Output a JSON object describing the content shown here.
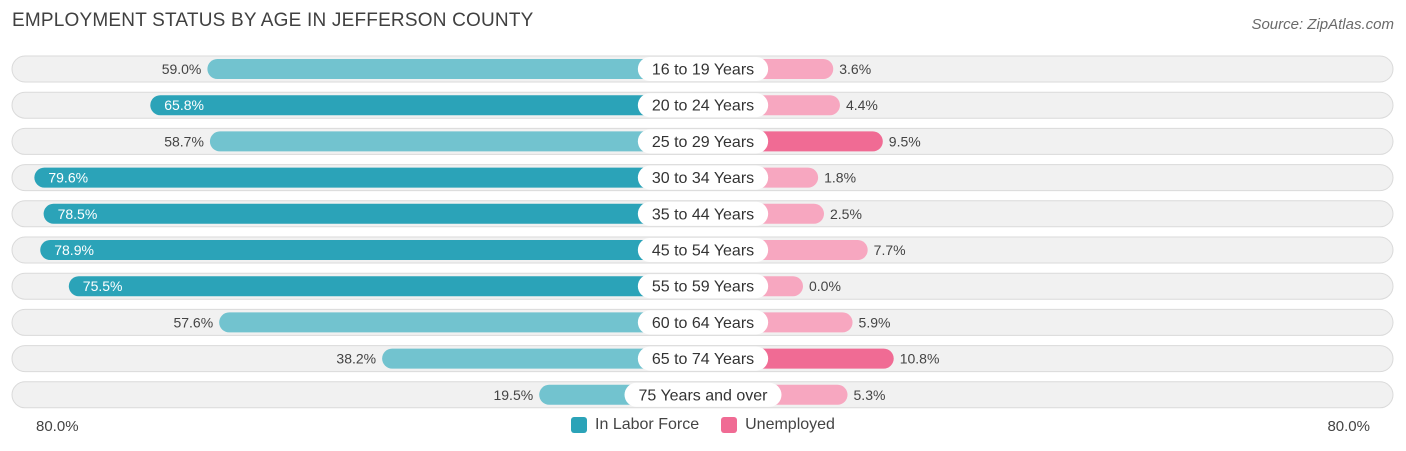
{
  "chart_data": {
    "type": "bar",
    "orientation": "diverging-horizontal",
    "title": "EMPLOYMENT STATUS BY AGE IN JEFFERSON COUNTY",
    "source": "Source: ZipAtlas.com",
    "categories": [
      "16 to 19 Years",
      "20 to 24 Years",
      "25 to 29 Years",
      "30 to 34 Years",
      "35 to 44 Years",
      "45 to 54 Years",
      "55 to 59 Years",
      "60 to 64 Years",
      "65 to 74 Years",
      "75 Years and over"
    ],
    "series": [
      {
        "name": "In Labor Force",
        "values": [
          59.0,
          65.8,
          58.7,
          79.6,
          78.5,
          78.9,
          75.5,
          57.6,
          38.2,
          19.5
        ],
        "labels": [
          "59.0%",
          "65.8%",
          "58.7%",
          "79.6%",
          "78.5%",
          "78.9%",
          "75.5%",
          "57.6%",
          "38.2%",
          "19.5%"
        ]
      },
      {
        "name": "Unemployed",
        "values": [
          3.6,
          4.4,
          9.5,
          1.8,
          2.5,
          7.7,
          0.0,
          5.9,
          10.8,
          5.3
        ],
        "labels": [
          "3.6%",
          "4.4%",
          "9.5%",
          "1.8%",
          "2.5%",
          "7.7%",
          "0.0%",
          "5.9%",
          "10.8%",
          "5.3%"
        ]
      }
    ],
    "axis_left_label": "80.0%",
    "axis_right_label": "80.0%",
    "xlim": [
      0,
      80
    ],
    "legend_position": "bottom-center",
    "colors": {
      "labor_dark": "#2ba3b8",
      "labor_light": "#72c3cf",
      "unemp_dark": "#f06b94",
      "unemp_light": "#f7a7c0"
    }
  }
}
